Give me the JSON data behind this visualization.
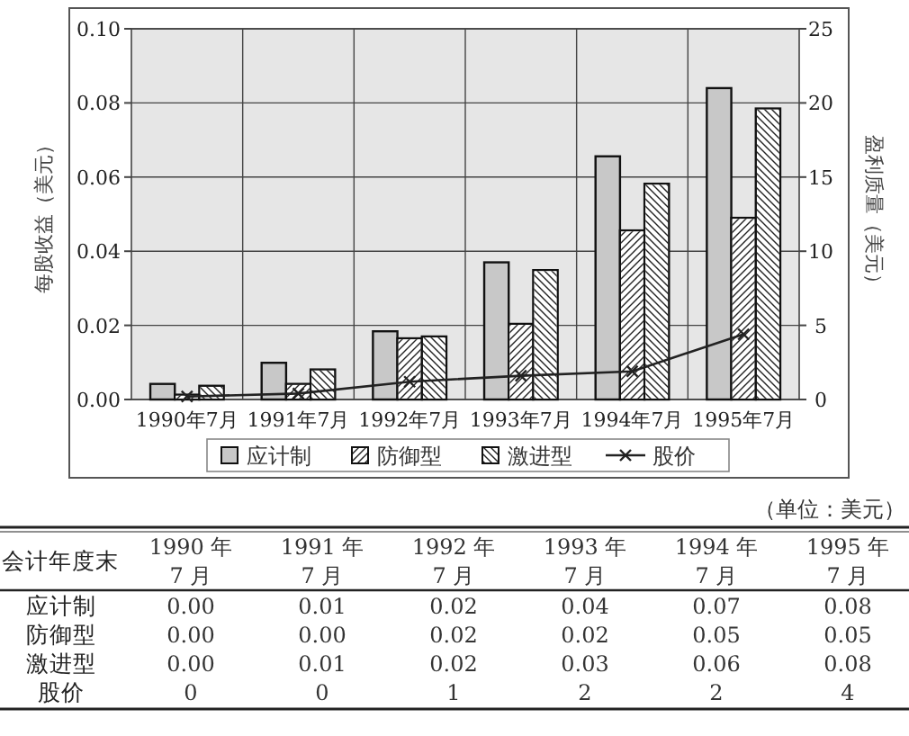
{
  "chart_data": {
    "type": "bar",
    "categories": [
      "1990年7月",
      "1991年7月",
      "1992年7月",
      "1993年7月",
      "1994年7月",
      "1995年7月"
    ],
    "ylabel": "每股收益（美元）",
    "y2label": "盈利质量（美元）",
    "ylim": [
      0,
      0.1
    ],
    "yticks": [
      {
        "value": 0,
        "label": "0.00"
      },
      {
        "value": 0.02,
        "label": "0.02"
      },
      {
        "value": 0.04,
        "label": "0.04"
      },
      {
        "value": 0.06,
        "label": "0.06"
      },
      {
        "value": 0.08,
        "label": "0.08"
      },
      {
        "value": 0.1,
        "label": "0.10"
      }
    ],
    "y2lim": [
      0,
      25
    ],
    "y2ticks": [
      0,
      5,
      10,
      15,
      20,
      25
    ],
    "series": [
      {
        "name": "应计制",
        "color": "#c8c8c8",
        "values": [
          0.0042,
          0.0099,
          0.0184,
          0.037,
          0.0656,
          0.084
        ]
      },
      {
        "name": "防御型",
        "color": "#ffffff",
        "values": [
          0.0013,
          0.0042,
          0.0165,
          0.0204,
          0.0456,
          0.049
        ]
      },
      {
        "name": "激进型",
        "color": "#ffffff",
        "values": [
          0.0037,
          0.0081,
          0.017,
          0.0349,
          0.0582,
          0.0785
        ]
      },
      {
        "name": "股价",
        "type": "line",
        "axis": "y2",
        "color": "#222222",
        "values": [
          0.2,
          0.4,
          1.2,
          1.6,
          1.9,
          4.4
        ]
      }
    ],
    "grid": true,
    "legend": "bottom",
    "marker": "cross",
    "line_style": "solid",
    "annotations": [
      "（单位：美元）",
      "会计年度末",
      "1990 年",
      "7 月",
      "1991 年",
      "7 月",
      "1992 年",
      "7 月",
      "1993 年",
      "7 月",
      "1994 年",
      "7 月",
      "1995 年",
      "7 月",
      "0.00",
      "0.01",
      "0.02",
      "0.04",
      "0.07",
      "0.08",
      "0.00",
      "0.00",
      "0.02",
      "0.02",
      "0.05",
      "0.05",
      "0.00",
      "0.01",
      "0.02",
      "0.03",
      "0.06",
      "0.08",
      "0",
      "0",
      "1",
      "2",
      "2",
      "4"
    ]
  }
}
